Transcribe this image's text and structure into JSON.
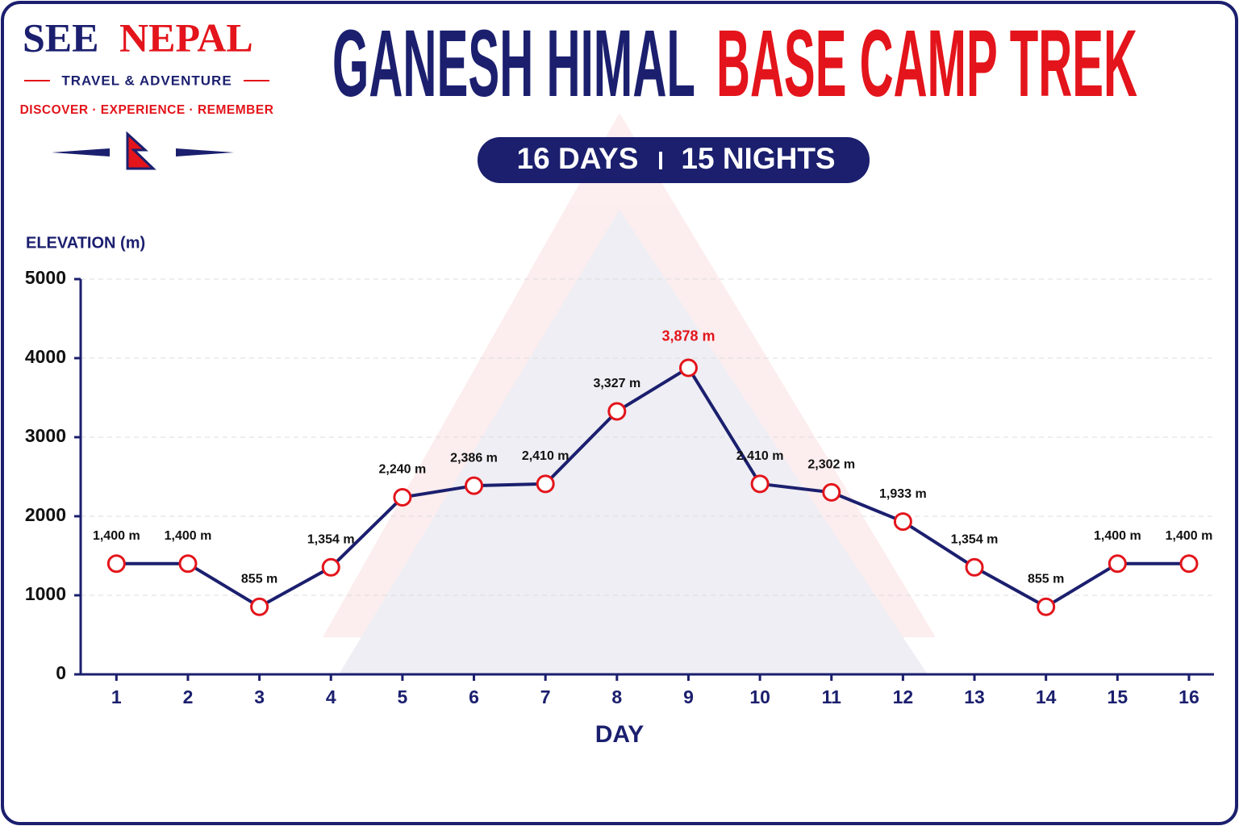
{
  "header": {
    "brand_first": "SEE",
    "brand_second": "NEPAL",
    "tagline": "TRAVEL & ADVENTURE",
    "motto": "DISCOVER · EXPERIENCE · REMEMBER"
  },
  "chart_data": {
    "type": "line",
    "title": "GANESH HIMAL",
    "title_highlight": "BASE CAMP TREK",
    "subtitle": [
      "16 DAYS",
      "15 NIGHTS"
    ],
    "y_label": "ELEVATION (m)",
    "x_label": "DAY",
    "x": [
      1,
      2,
      3,
      4,
      5,
      6,
      7,
      8,
      9,
      10,
      11,
      12,
      13,
      14,
      15,
      16
    ],
    "values": [
      1400,
      1400,
      855,
      1354,
      2240,
      2386,
      2410,
      3327,
      3878,
      2410,
      2302,
      1933,
      1354,
      855,
      1400,
      1400
    ],
    "value_labels": [
      "1,400 m",
      "1,400 m",
      "855 m",
      "1,354 m",
      "2,240 m",
      "2,386 m",
      "2,410 m",
      "3,327 m",
      "3,878 m",
      "2,410 m",
      "2,302 m",
      "1,933 m",
      "1,354 m",
      "855 m",
      "1,400 m",
      "1,400 m"
    ],
    "color": "#1b1f6e",
    "marker_color": "#e3141b",
    "peak_label_color": "#e3141b",
    "xlim": [
      0.5,
      16.35
    ],
    "xticks": [
      1,
      2,
      3,
      4,
      5,
      6,
      7,
      8,
      9,
      10,
      11,
      12,
      13,
      14,
      15,
      16
    ],
    "ylim": [
      0,
      5000
    ],
    "yticks": [
      0,
      1000,
      2000,
      3000,
      4000,
      5000
    ],
    "grid": true
  }
}
